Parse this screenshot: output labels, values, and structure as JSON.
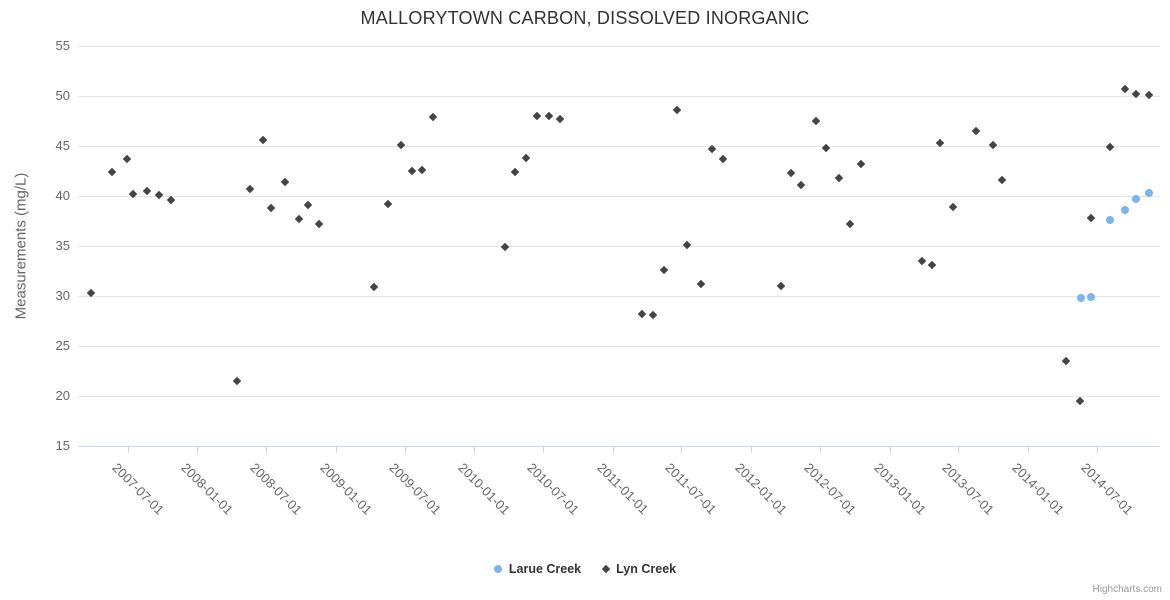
{
  "credit": {
    "label": "Highcharts.com"
  },
  "chart_data": {
    "type": "scatter",
    "title": "MALLORYTOWN CARBON, DISSOLVED INORGANIC",
    "xlabel": "",
    "ylabel": "Measurements (mg/L)",
    "ylim": [
      15,
      55
    ],
    "yticks": [
      15,
      20,
      25,
      30,
      35,
      40,
      45,
      50,
      55
    ],
    "xlim": [
      "2007-02-20",
      "2014-12-15"
    ],
    "xticks": [
      "2007-07-01",
      "2008-01-01",
      "2008-07-01",
      "2009-01-01",
      "2009-07-01",
      "2010-01-01",
      "2010-07-01",
      "2011-01-01",
      "2011-07-01",
      "2012-01-01",
      "2012-07-01",
      "2013-01-01",
      "2013-07-01",
      "2014-01-01",
      "2014-07-01"
    ],
    "grid": "horizontal-only",
    "legend_position": "bottom-center",
    "colors": {
      "grid": "#e6e6e6",
      "axis_line": "#ccd6eb",
      "tick_text": "#666666",
      "title_text": "#333333",
      "credit_text": "#999999"
    },
    "series": [
      {
        "name": "Larue Creek",
        "color": "#7cb5ec",
        "marker": "circle",
        "data": [
          [
            "2014-05-20",
            29.8
          ],
          [
            "2014-06-16",
            29.9
          ],
          [
            "2014-08-05",
            37.6
          ],
          [
            "2014-09-14",
            38.6
          ],
          [
            "2014-10-13",
            39.7
          ],
          [
            "2014-11-16",
            40.3
          ]
        ]
      },
      {
        "name": "Lyn Creek",
        "color": "#434348",
        "marker": "diamond",
        "data": [
          [
            "2007-03-25",
            30.3
          ],
          [
            "2007-05-20",
            42.4
          ],
          [
            "2007-06-28",
            43.7
          ],
          [
            "2007-07-16",
            40.2
          ],
          [
            "2007-08-20",
            40.5
          ],
          [
            "2007-09-23",
            40.1
          ],
          [
            "2007-10-24",
            39.6
          ],
          [
            "2008-04-15",
            21.5
          ],
          [
            "2008-05-19",
            40.7
          ],
          [
            "2008-06-22",
            45.6
          ],
          [
            "2008-07-12",
            38.8
          ],
          [
            "2008-08-19",
            41.4
          ],
          [
            "2008-09-25",
            37.7
          ],
          [
            "2008-10-19",
            39.1
          ],
          [
            "2008-11-17",
            37.2
          ],
          [
            "2009-04-12",
            30.9
          ],
          [
            "2009-05-19",
            39.2
          ],
          [
            "2009-06-21",
            45.1
          ],
          [
            "2009-07-20",
            42.5
          ],
          [
            "2009-08-16",
            42.6
          ],
          [
            "2009-09-15",
            47.9
          ],
          [
            "2010-03-22",
            34.9
          ],
          [
            "2010-04-19",
            42.4
          ],
          [
            "2010-05-16",
            43.8
          ],
          [
            "2010-06-15",
            48.0
          ],
          [
            "2010-07-18",
            48.0
          ],
          [
            "2010-08-15",
            47.7
          ],
          [
            "2011-03-19",
            28.2
          ],
          [
            "2011-04-16",
            28.1
          ],
          [
            "2011-05-16",
            32.6
          ],
          [
            "2011-06-19",
            48.6
          ],
          [
            "2011-07-16",
            35.1
          ],
          [
            "2011-08-22",
            31.2
          ],
          [
            "2011-09-19",
            44.7
          ],
          [
            "2011-10-18",
            43.7
          ],
          [
            "2012-03-19",
            31.0
          ],
          [
            "2012-04-16",
            42.3
          ],
          [
            "2012-05-13",
            41.1
          ],
          [
            "2012-06-19",
            47.5
          ],
          [
            "2012-07-16",
            44.8
          ],
          [
            "2012-08-20",
            41.8
          ],
          [
            "2012-09-17",
            37.2
          ],
          [
            "2012-10-16",
            43.2
          ],
          [
            "2013-03-26",
            33.5
          ],
          [
            "2013-04-22",
            33.1
          ],
          [
            "2013-05-13",
            45.3
          ],
          [
            "2013-06-16",
            38.9
          ],
          [
            "2013-08-17",
            46.5
          ],
          [
            "2013-09-30",
            45.1
          ],
          [
            "2013-10-23",
            41.6
          ],
          [
            "2014-04-12",
            23.5
          ],
          [
            "2014-05-17",
            19.5
          ],
          [
            "2014-06-16",
            37.8
          ],
          [
            "2014-08-05",
            44.9
          ],
          [
            "2014-09-14",
            50.7
          ],
          [
            "2014-10-13",
            50.2
          ],
          [
            "2014-11-16",
            50.1
          ]
        ]
      }
    ]
  }
}
